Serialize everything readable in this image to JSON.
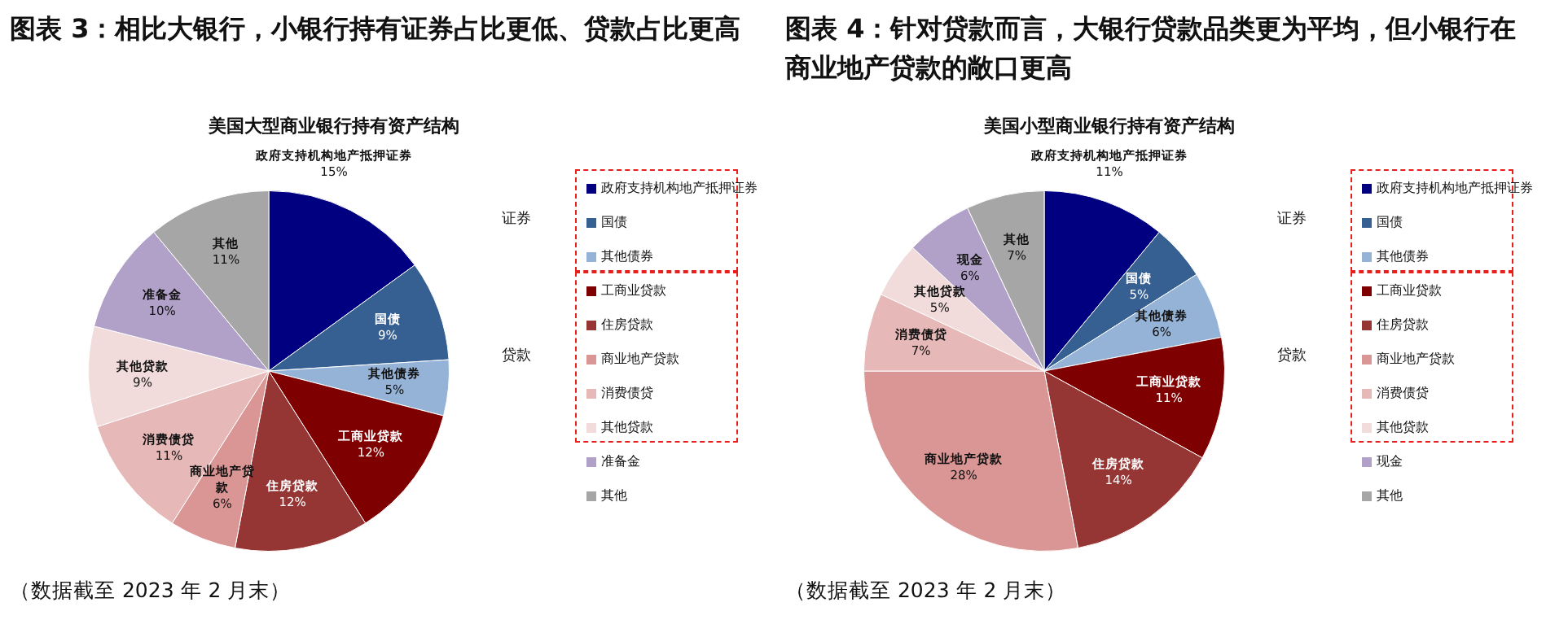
{
  "chart_data": [
    {
      "type": "pie",
      "title": "图表 3：相比大银行，小银行持有证券占比更低、贷款占比更高",
      "subtitle": "美国大型商业银行持有资产结构",
      "categories": [
        "政府支持机构地产抵押证券",
        "国债",
        "其他债券",
        "工商业贷款",
        "住房贷款",
        "商业地产贷款",
        "消费债贷",
        "其他贷款",
        "准备金",
        "其他"
      ],
      "values": [
        15,
        9,
        5,
        12,
        12,
        6,
        11,
        9,
        10,
        11
      ],
      "value_labels": [
        "15%",
        "9%",
        "5%",
        "12%",
        "12%",
        "6%",
        "11%",
        "9%",
        "10%",
        "11%"
      ],
      "colors": [
        "#000080",
        "#366092",
        "#95b3d7",
        "#7f0000",
        "#963634",
        "#da9694",
        "#e6b8b7",
        "#f2dcdb",
        "#b1a0c7",
        "#a6a6a6"
      ],
      "legend": "right",
      "annotations": [
        "证券",
        "贷款",
        "（数据截至 2023 年 2 月末）"
      ]
    },
    {
      "type": "pie",
      "title": "图表 4：针对贷款而言，大银行贷款品类更为平均，但小银行在商业地产贷款的敞口更高",
      "subtitle": "美国小型商业银行持有资产结构",
      "categories": [
        "政府支持机构地产抵押证券",
        "国债",
        "其他债券",
        "工商业贷款",
        "住房贷款",
        "商业地产贷款",
        "消费债贷",
        "其他贷款",
        "现金",
        "其他"
      ],
      "values": [
        11,
        5,
        6,
        11,
        14,
        28,
        7,
        5,
        6,
        7
      ],
      "value_labels": [
        "11%",
        "5%",
        "6%",
        "11%",
        "14%",
        "28%",
        "7%",
        "5%",
        "6%",
        "7%"
      ],
      "colors": [
        "#000080",
        "#366092",
        "#95b3d7",
        "#7f0000",
        "#963634",
        "#da9694",
        "#e6b8b7",
        "#f2dcdb",
        "#b1a0c7",
        "#a6a6a6"
      ],
      "legend": "right",
      "annotations": [
        "证券",
        "贷款",
        "（数据截至 2023 年 2 月末）"
      ]
    }
  ]
}
